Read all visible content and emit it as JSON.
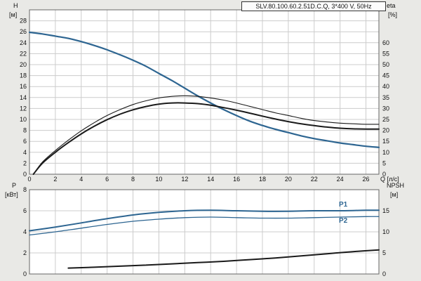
{
  "title": "SLV.80.100.60.2.51D.C.Q, 3*400 V, 50Hz",
  "labels": {
    "q_axis": "Q [л/с]"
  },
  "colors": {
    "curve_blue": "#2d6591",
    "curve_black": "#1a1a1a",
    "grid": "#cccccc",
    "frame": "#666666",
    "plot_bg": "#ffffff",
    "page_bg": "#e9e9e6"
  },
  "chart_data": [
    {
      "id": "hq",
      "type": "line",
      "x": {
        "label": "Q [л/с]",
        "min": 0,
        "max": 27,
        "grid": 2,
        "ticks": [
          0,
          2,
          4,
          6,
          8,
          10,
          12,
          14,
          16,
          18,
          20,
          22,
          24,
          26
        ]
      },
      "y_left": {
        "label": "H",
        "unit": "[м]",
        "min": 0,
        "max": 30,
        "grid": 2,
        "ticks": [
          0,
          2,
          4,
          6,
          8,
          10,
          12,
          14,
          16,
          18,
          20,
          22,
          24,
          26,
          28
        ]
      },
      "y_right": {
        "label": "eta",
        "unit": "[%]",
        "min": 0,
        "max": 75,
        "ticks": [
          0,
          5,
          10,
          15,
          20,
          25,
          30,
          35,
          40,
          45,
          50,
          55,
          60
        ]
      },
      "series": [
        {
          "name": "H",
          "axis": "left",
          "color": "#2d6591",
          "width": 2.2,
          "x": [
            0,
            1,
            2,
            3,
            4,
            5,
            6,
            7,
            8,
            9,
            10,
            11,
            12,
            13,
            14,
            15,
            16,
            17,
            18,
            19,
            20,
            21,
            22,
            23,
            24,
            25,
            26,
            27
          ],
          "y": [
            25.9,
            25.6,
            25.2,
            24.8,
            24.2,
            23.5,
            22.7,
            21.8,
            20.8,
            19.7,
            18.4,
            17.1,
            15.7,
            14.3,
            13.0,
            11.8,
            10.7,
            9.7,
            8.9,
            8.2,
            7.6,
            7.0,
            6.5,
            6.1,
            5.7,
            5.4,
            5.1,
            4.9
          ]
        },
        {
          "name": "eta-thin",
          "axis": "right",
          "color": "#1a1a1a",
          "width": 1.1,
          "x": [
            0.3,
            1,
            2,
            3,
            4,
            5,
            6,
            7,
            8,
            9,
            10,
            11,
            12,
            13,
            14,
            15,
            16,
            17,
            18,
            19,
            20,
            21,
            22,
            23,
            24,
            25,
            26,
            27
          ],
          "y": [
            0,
            5.5,
            10.8,
            15.5,
            19.8,
            23.5,
            26.8,
            29.5,
            31.8,
            33.5,
            34.8,
            35.5,
            35.8,
            35.5,
            34.8,
            33.8,
            32.5,
            31.0,
            29.5,
            28.0,
            26.8,
            25.5,
            24.5,
            23.8,
            23.3,
            23.0,
            22.8,
            22.8
          ]
        },
        {
          "name": "eta-bold",
          "axis": "right",
          "color": "#1a1a1a",
          "width": 2,
          "x": [
            0.3,
            1,
            2,
            3,
            4,
            5,
            6,
            7,
            8,
            9,
            10,
            11,
            12,
            13,
            14,
            15,
            16,
            17,
            18,
            19,
            20,
            21,
            22,
            23,
            24,
            25,
            26,
            27
          ],
          "y": [
            0,
            5.0,
            10.0,
            14.4,
            18.4,
            21.9,
            24.9,
            27.4,
            29.4,
            30.9,
            32.0,
            32.5,
            32.5,
            32.2,
            31.5,
            30.4,
            29.2,
            27.9,
            26.5,
            25.2,
            24.0,
            23.0,
            22.2,
            21.5,
            21.0,
            20.7,
            20.6,
            20.6
          ]
        }
      ]
    },
    {
      "id": "power",
      "type": "line",
      "x": {
        "label": "",
        "min": 0,
        "max": 27,
        "grid": 2,
        "ticks": []
      },
      "y_left": {
        "label": "P",
        "unit": "[кВт]",
        "min": 0,
        "max": 8,
        "grid": 2,
        "ticks": [
          0,
          2,
          4,
          6,
          8
        ]
      },
      "y_right": {
        "label": "NPSH",
        "unit": "[м]",
        "min": 0,
        "max": 20,
        "ticks": [
          0,
          5,
          10,
          15
        ]
      },
      "series": [
        {
          "name": "P1",
          "axis": "left",
          "color": "#2d6591",
          "width": 2,
          "x": [
            0,
            2,
            4,
            6,
            8,
            10,
            12,
            14,
            16,
            18,
            20,
            22,
            24,
            26,
            27
          ],
          "y": [
            4.1,
            4.45,
            4.85,
            5.25,
            5.6,
            5.85,
            6.0,
            6.05,
            6.0,
            5.95,
            5.95,
            6.0,
            6.0,
            6.05,
            6.05
          ]
        },
        {
          "name": "P2",
          "axis": "left",
          "color": "#2d6591",
          "width": 1.3,
          "x": [
            0,
            2,
            4,
            6,
            8,
            10,
            12,
            14,
            16,
            18,
            20,
            22,
            24,
            26,
            27
          ],
          "y": [
            3.7,
            4.0,
            4.35,
            4.7,
            5.0,
            5.2,
            5.35,
            5.4,
            5.35,
            5.3,
            5.3,
            5.35,
            5.4,
            5.45,
            5.45
          ]
        },
        {
          "name": "NPSH",
          "axis": "right",
          "color": "#1a1a1a",
          "width": 2,
          "x": [
            3,
            5,
            7,
            9,
            11,
            13,
            15,
            17,
            19,
            21,
            23,
            25,
            27
          ],
          "y": [
            1.4,
            1.6,
            1.85,
            2.1,
            2.4,
            2.7,
            3.0,
            3.4,
            3.8,
            4.3,
            4.8,
            5.3,
            5.7
          ]
        }
      ]
    }
  ]
}
